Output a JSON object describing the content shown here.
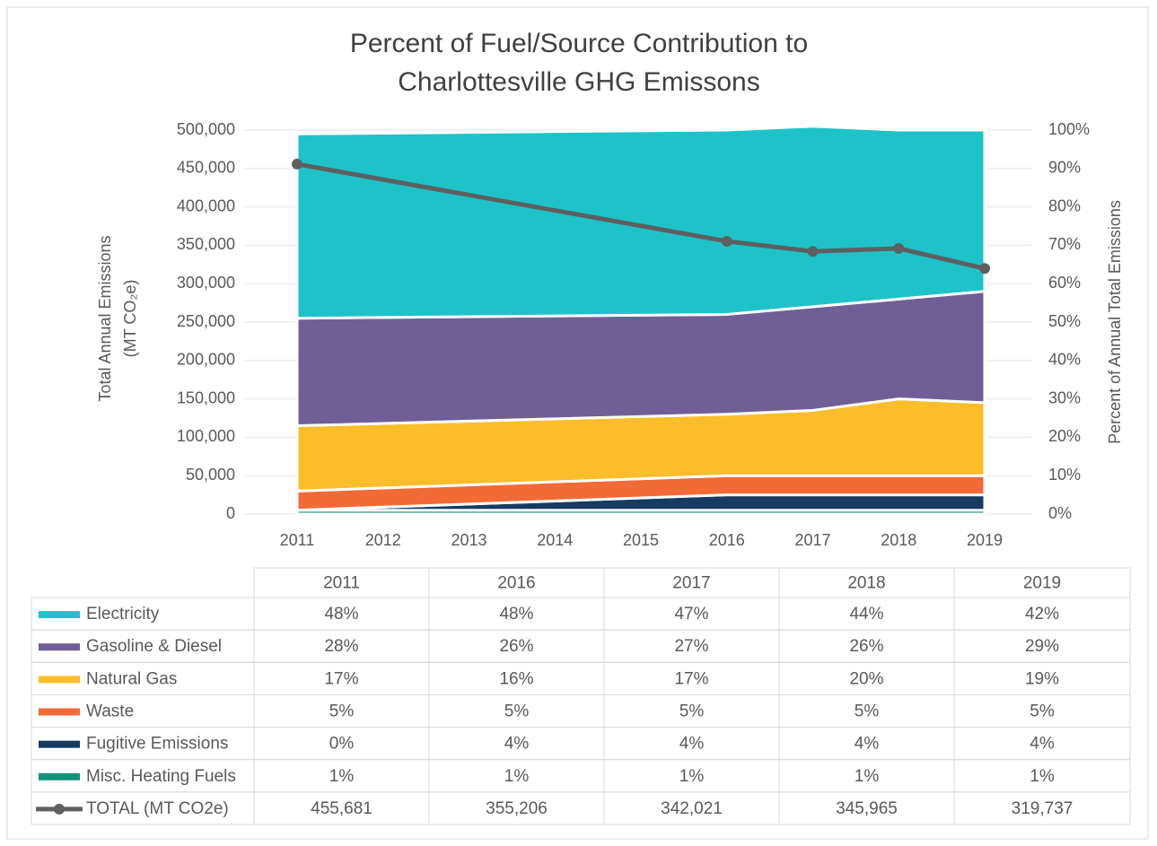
{
  "chart_data": {
    "type": "stacked_area_line",
    "title": [
      "Percent of Fuel/Source Contribution to",
      "Charlottesville GHG Emissons"
    ],
    "y_label": [
      "Total Annual  Emissions",
      "(MT CO₂e)"
    ],
    "y2_label": "Percent of Annual Total Emissions",
    "x": [
      2011,
      2016,
      2017,
      2018,
      2019
    ],
    "xlim": [
      2011,
      2019
    ],
    "xticks": [
      2011,
      2012,
      2013,
      2014,
      2015,
      2016,
      2017,
      2018,
      2019
    ],
    "ylim": [
      0,
      500000
    ],
    "yticks": [
      0,
      {
        "value": 50000,
        "label": "50,000"
      },
      {
        "value": 100000,
        "label": "100,000"
      },
      {
        "value": 150000,
        "label": "150,000"
      },
      {
        "value": 200000,
        "label": "200,000"
      },
      {
        "value": 250000,
        "label": "250,000"
      },
      {
        "value": 300000,
        "label": "300,000"
      },
      {
        "value": 350000,
        "label": "350,000"
      },
      {
        "value": 400000,
        "label": "400,000"
      },
      {
        "value": 450000,
        "label": "450,000"
      },
      {
        "value": 500000,
        "label": "500,000"
      }
    ],
    "y2lim": [
      0,
      100
    ],
    "y2ticks": [
      {
        "value": 0,
        "label": "0%"
      },
      {
        "value": 10,
        "label": "10%"
      },
      {
        "value": 20,
        "label": "20%"
      },
      {
        "value": 30,
        "label": "30%"
      },
      {
        "value": 40,
        "label": "40%"
      },
      {
        "value": 50,
        "label": "50%"
      },
      {
        "value": 60,
        "label": "60%"
      },
      {
        "value": 70,
        "label": "70%"
      },
      {
        "value": 80,
        "label": "80%"
      },
      {
        "value": 90,
        "label": "90%"
      },
      {
        "value": 100,
        "label": "100%"
      }
    ],
    "grid": true,
    "series": [
      {
        "name": "Electricity",
        "color": "#1ec3c9",
        "axis": "y2",
        "values": [
          48,
          48,
          47,
          44,
          42
        ],
        "value_labels": [
          "48%",
          "48%",
          "47%",
          "44%",
          "42%"
        ]
      },
      {
        "name": "Gasoline & Diesel",
        "color": "#705f96",
        "axis": "y2",
        "values": [
          28,
          26,
          27,
          26,
          29
        ],
        "value_labels": [
          "28%",
          "26%",
          "27%",
          "26%",
          "29%"
        ]
      },
      {
        "name": "Natural Gas",
        "color": "#fbbd2a",
        "axis": "y2",
        "values": [
          17,
          16,
          17,
          20,
          19
        ],
        "value_labels": [
          "17%",
          "16%",
          "17%",
          "20%",
          "19%"
        ]
      },
      {
        "name": "Waste",
        "color": "#f26a36",
        "axis": "y2",
        "values": [
          5,
          5,
          5,
          5,
          5
        ],
        "value_labels": [
          "5%",
          "5%",
          "5%",
          "5%",
          "5%"
        ]
      },
      {
        "name": "Fugitive Emissions",
        "color": "#163b63",
        "axis": "y2",
        "values": [
          0,
          4,
          4,
          4,
          4
        ],
        "value_labels": [
          "0%",
          "4%",
          "4%",
          "4%",
          "4%"
        ]
      },
      {
        "name": "Misc. Heating Fuels",
        "color": "#12937a",
        "axis": "y2",
        "values": [
          1,
          1,
          1,
          1,
          1
        ],
        "value_labels": [
          "1%",
          "1%",
          "1%",
          "1%",
          "1%"
        ]
      },
      {
        "name": "TOTAL (MT CO2e)",
        "color": "#5f5f5f",
        "axis": "y",
        "values": [
          455681,
          355206,
          342021,
          345965,
          319737
        ],
        "value_labels": [
          "455,681",
          "355,206",
          "342,021",
          "345,965",
          "319,737"
        ]
      }
    ]
  }
}
